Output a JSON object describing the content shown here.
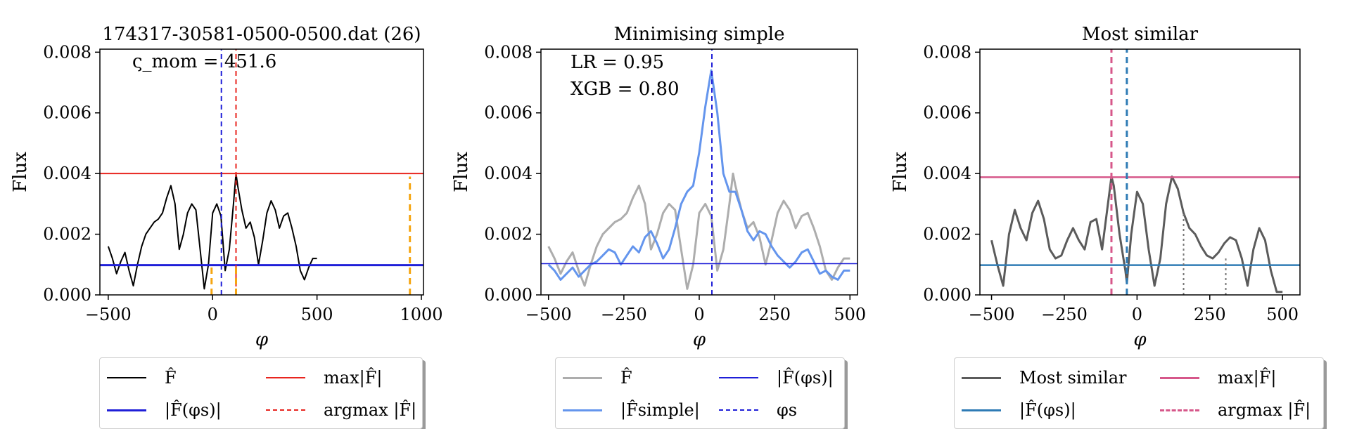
{
  "charts": [
    {
      "title": "174317-30581-0500-0500.dat (26)",
      "ylabel": "Flux",
      "xlabel": "φ",
      "annotations": [
        "ς_mom = 451.6"
      ],
      "xlim": [
        -540,
        1010
      ],
      "ylim": [
        0,
        0.0081
      ],
      "xticks": [
        -500,
        0,
        500,
        1000
      ],
      "xtick_labels": [
        "−500",
        "0",
        "500",
        "1000"
      ],
      "yticks": [
        0,
        0.002,
        0.004,
        0.006,
        0.008
      ],
      "ytick_labels": [
        "0.000",
        "0.002",
        "0.004",
        "0.006",
        "0.008"
      ],
      "hlines": [
        {
          "y": 0.004,
          "color": "#e8251f",
          "width": 2
        },
        {
          "y": 0.00098,
          "color": "#1f1fd8",
          "width": 3
        }
      ],
      "vlines": [
        {
          "x": 42,
          "color": "#1f1fd8",
          "dash": "7,5",
          "width": 2,
          "y0": 0,
          "y1": 0.0081
        },
        {
          "x": 112,
          "color": "#e8251f",
          "dash": "7,5",
          "width": 2,
          "y0": 0,
          "y1": 0.0081
        },
        {
          "x": -5,
          "color": "#f5a511",
          "dash": "9,6",
          "width": 3,
          "y0": 0,
          "y1": 0.00098
        },
        {
          "x": 112,
          "color": "#f5a511",
          "dash": "9,6",
          "width": 3,
          "y0": 0,
          "y1": 0.00098
        },
        {
          "x": 945,
          "color": "#f5a511",
          "dash": "9,6",
          "width": 3,
          "y0": 0,
          "y1": 0.0039
        }
      ],
      "series": [
        {
          "color": "#000000",
          "width": 2,
          "x": [
            -500,
            -480,
            -460,
            -440,
            -420,
            -400,
            -380,
            -360,
            -340,
            -320,
            -300,
            -280,
            -260,
            -240,
            -220,
            -200,
            -180,
            -160,
            -140,
            -120,
            -100,
            -80,
            -60,
            -40,
            -20,
            0,
            20,
            40,
            60,
            80,
            100,
            112,
            120,
            140,
            160,
            180,
            200,
            220,
            240,
            260,
            280,
            300,
            320,
            340,
            360,
            380,
            400,
            420,
            440,
            460,
            480,
            500
          ],
          "y": [
            0.0016,
            0.0012,
            0.0007,
            0.0011,
            0.0014,
            0.0008,
            0.0003,
            0.001,
            0.0016,
            0.002,
            0.0022,
            0.0024,
            0.0025,
            0.0027,
            0.0032,
            0.0036,
            0.003,
            0.0015,
            0.002,
            0.0027,
            0.003,
            0.0028,
            0.0015,
            0.0002,
            0.001,
            0.0027,
            0.003,
            0.0026,
            0.0008,
            0.0015,
            0.003,
            0.004,
            0.0036,
            0.0028,
            0.0022,
            0.0024,
            0.0019,
            0.001,
            0.0018,
            0.0027,
            0.0031,
            0.0028,
            0.0022,
            0.0026,
            0.0027,
            0.0022,
            0.0016,
            0.0008,
            0.0005,
            0.0009,
            0.0012,
            0.0012
          ]
        }
      ],
      "legend": [
        {
          "label": "F̂",
          "color": "#000000",
          "style": "solid"
        },
        {
          "label": "max|F̂|",
          "color": "#e8251f",
          "style": "solid"
        },
        {
          "label": "|F̂(φs)|",
          "color": "#1f1fd8",
          "style": "solid"
        },
        {
          "label": "argmax |F̂|",
          "color": "#e8251f",
          "style": "dashed"
        }
      ]
    },
    {
      "title": "Minimising simple",
      "ylabel": "Flux",
      "xlabel": "φ",
      "annotations": [
        "LR = 0.95",
        "XGB = 0.80"
      ],
      "xlim": [
        -525,
        525
      ],
      "ylim": [
        0,
        0.0081
      ],
      "xticks": [
        -500,
        -250,
        0,
        250,
        500
      ],
      "xtick_labels": [
        "−500",
        "−250",
        "0",
        "250",
        "500"
      ],
      "yticks": [
        0,
        0.002,
        0.004,
        0.006,
        0.008
      ],
      "ytick_labels": [
        "0.000",
        "0.002",
        "0.004",
        "0.006",
        "0.008"
      ],
      "hlines": [
        {
          "y": 0.00103,
          "color": "#1f1fd8",
          "width": 1.5
        }
      ],
      "vlines": [
        {
          "x": 42,
          "color": "#1f1fd8",
          "dash": "7,5",
          "width": 2,
          "y0": 0,
          "y1": 0.0081
        }
      ],
      "series": [
        {
          "color": "#adadad",
          "width": 3,
          "x": [
            -500,
            -480,
            -460,
            -440,
            -420,
            -400,
            -380,
            -360,
            -340,
            -320,
            -300,
            -280,
            -260,
            -240,
            -220,
            -200,
            -180,
            -160,
            -140,
            -120,
            -100,
            -80,
            -60,
            -40,
            -20,
            0,
            20,
            40,
            60,
            80,
            100,
            112,
            120,
            140,
            160,
            180,
            200,
            220,
            240,
            260,
            280,
            300,
            320,
            340,
            360,
            380,
            400,
            420,
            440,
            460,
            480,
            500
          ],
          "y": [
            0.0016,
            0.0012,
            0.0007,
            0.0011,
            0.0014,
            0.0008,
            0.0003,
            0.001,
            0.0016,
            0.002,
            0.0022,
            0.0024,
            0.0025,
            0.0027,
            0.0032,
            0.0036,
            0.003,
            0.0015,
            0.002,
            0.0027,
            0.003,
            0.0028,
            0.0015,
            0.0002,
            0.001,
            0.0027,
            0.003,
            0.0026,
            0.0008,
            0.0015,
            0.003,
            0.004,
            0.0036,
            0.0028,
            0.0022,
            0.0024,
            0.0019,
            0.001,
            0.0018,
            0.0027,
            0.0031,
            0.0028,
            0.0022,
            0.0026,
            0.0027,
            0.0022,
            0.0016,
            0.0008,
            0.0005,
            0.0009,
            0.0012,
            0.0012
          ]
        },
        {
          "color": "#6495ed",
          "width": 3,
          "x": [
            -500,
            -480,
            -460,
            -440,
            -420,
            -400,
            -380,
            -360,
            -340,
            -320,
            -300,
            -280,
            -260,
            -240,
            -220,
            -200,
            -180,
            -160,
            -140,
            -120,
            -100,
            -80,
            -60,
            -40,
            -20,
            0,
            20,
            40,
            60,
            80,
            100,
            120,
            140,
            160,
            180,
            200,
            220,
            240,
            260,
            280,
            300,
            320,
            340,
            360,
            380,
            400,
            420,
            440,
            460,
            480,
            500
          ],
          "y": [
            0.001,
            0.0008,
            0.0005,
            0.0007,
            0.0009,
            0.0006,
            0.0008,
            0.001,
            0.0011,
            0.0013,
            0.0015,
            0.0014,
            0.001,
            0.0013,
            0.0016,
            0.0014,
            0.0019,
            0.0021,
            0.0017,
            0.0012,
            0.0015,
            0.0022,
            0.003,
            0.0034,
            0.0036,
            0.0047,
            0.0062,
            0.0074,
            0.006,
            0.004,
            0.0034,
            0.0034,
            0.0028,
            0.0021,
            0.0018,
            0.0021,
            0.002,
            0.0016,
            0.0013,
            0.0011,
            0.0009,
            0.0011,
            0.0014,
            0.0015,
            0.0011,
            0.0007,
            0.0008,
            0.0006,
            0.0005,
            0.0008,
            0.0008
          ]
        }
      ],
      "legend": [
        {
          "label": "F̂",
          "color": "#adadad",
          "style": "solid"
        },
        {
          "label": "|F̂(φs)|",
          "color": "#1f1fd8",
          "style": "solid"
        },
        {
          "label": "|F̂simple|",
          "color": "#6495ed",
          "style": "solid"
        },
        {
          "label": "φs",
          "color": "#1f1fd8",
          "style": "dashed"
        }
      ]
    },
    {
      "title": "Most similar",
      "ylabel": "Flux",
      "xlabel": "φ",
      "annotations": [],
      "xlim": [
        -540,
        560
      ],
      "ylim": [
        0,
        0.0081
      ],
      "xticks": [
        -500,
        -250,
        0,
        250,
        500
      ],
      "xtick_labels": [
        "−500",
        "−250",
        "0",
        "250",
        "500"
      ],
      "yticks": [
        0,
        0.002,
        0.004,
        0.006,
        0.008
      ],
      "ytick_labels": [
        "0.000",
        "0.002",
        "0.004",
        "0.006",
        "0.008"
      ],
      "hlines": [
        {
          "y": 0.00388,
          "color": "#d6578a",
          "width": 2.5
        },
        {
          "y": 0.00098,
          "color": "#2e7bb5",
          "width": 2.5
        }
      ],
      "vlines": [
        {
          "x": -88,
          "color": "#d6578a",
          "dash": "9,6",
          "width": 3,
          "y0": 0,
          "y1": 0.0081
        },
        {
          "x": -35,
          "color": "#2e7bb5",
          "dash": "9,6",
          "width": 3,
          "y0": 0,
          "y1": 0.0081
        },
        {
          "x": 160,
          "color": "#777777",
          "dash": "3,4",
          "width": 2,
          "y0": 0,
          "y1": 0.0027
        },
        {
          "x": 305,
          "color": "#777777",
          "dash": "3,4",
          "width": 2,
          "y0": 0,
          "y1": 0.0012
        }
      ],
      "series": [
        {
          "color": "#5b5b5b",
          "width": 3,
          "x": [
            -500,
            -480,
            -460,
            -440,
            -420,
            -400,
            -380,
            -360,
            -340,
            -320,
            -300,
            -280,
            -260,
            -240,
            -220,
            -200,
            -180,
            -160,
            -140,
            -120,
            -100,
            -88,
            -80,
            -60,
            -40,
            -35,
            -20,
            0,
            20,
            40,
            60,
            80,
            100,
            120,
            140,
            160,
            180,
            200,
            220,
            240,
            260,
            280,
            300,
            320,
            340,
            360,
            380,
            400,
            420,
            440,
            460,
            480,
            500
          ],
          "y": [
            0.0018,
            0.001,
            0.0003,
            0.002,
            0.0028,
            0.0022,
            0.0018,
            0.0027,
            0.0031,
            0.0025,
            0.0015,
            0.0012,
            0.0013,
            0.0018,
            0.0022,
            0.0018,
            0.0015,
            0.0024,
            0.0025,
            0.0015,
            0.003,
            0.0039,
            0.0036,
            0.002,
            0.0008,
            0.0004,
            0.002,
            0.0034,
            0.003,
            0.0015,
            0.0003,
            0.0012,
            0.003,
            0.0039,
            0.0035,
            0.0027,
            0.0022,
            0.002,
            0.0016,
            0.0013,
            0.0012,
            0.0014,
            0.0017,
            0.0019,
            0.0018,
            0.0012,
            0.0003,
            0.0015,
            0.0022,
            0.0018,
            0.0008,
            0.0001,
            0.0001
          ]
        }
      ],
      "legend": [
        {
          "label": "Most similar",
          "color": "#5b5b5b",
          "style": "solid"
        },
        {
          "label": "max|F̂|",
          "color": "#d6578a",
          "style": "solid"
        },
        {
          "label": "|F̂(φs)|",
          "color": "#2e7bb5",
          "style": "solid"
        },
        {
          "label": "argmax |F̂|",
          "color": "#d6578a",
          "style": "dashed"
        }
      ]
    }
  ]
}
